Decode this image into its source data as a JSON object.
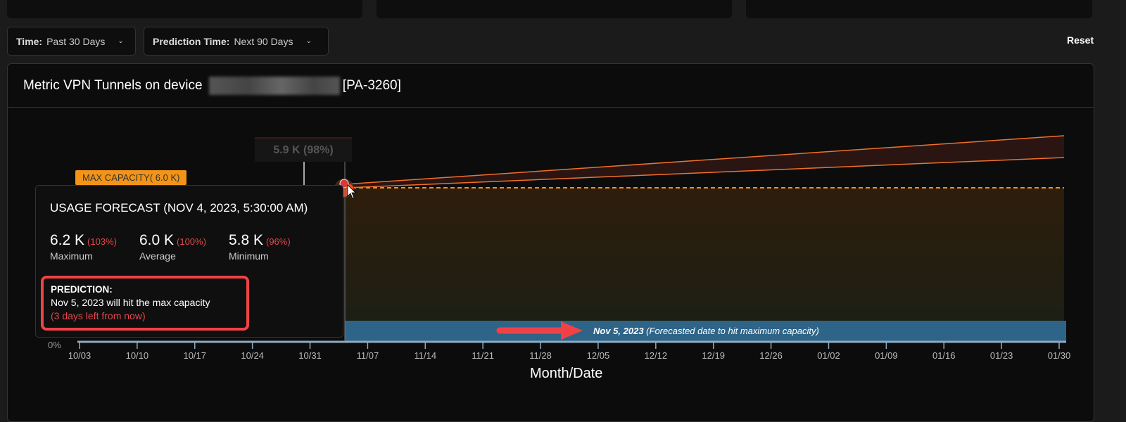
{
  "filters": {
    "time_label": "Time:",
    "time_value": "Past 30 Days",
    "prediction_label": "Prediction Time:",
    "prediction_value": "Next 90 Days",
    "reset": "Reset"
  },
  "panel": {
    "title_prefix": "Metric VPN Tunnels on device",
    "title_suffix": "[PA-3260]"
  },
  "chart": {
    "max_capacity_label": "MAX CAPACITY( 6.0 K)",
    "hover_value": "5.9 K (98%)",
    "zero_label": "0%",
    "xlabel": "Month/Date",
    "ticks": [
      "10/03",
      "10/10",
      "10/17",
      "10/24",
      "10/31",
      "11/07",
      "11/14",
      "11/21",
      "11/28",
      "12/05",
      "12/12",
      "12/19",
      "12/26",
      "01/02",
      "01/09",
      "01/16",
      "01/23",
      "01/30"
    ],
    "band_date": "Nov 5, 2023",
    "band_text": "(Forecasted date to hit maximum capacity)",
    "colors": {
      "forecast_line": "#f0702a",
      "max_line": "#f29418",
      "band": "#2e6488",
      "arrow": "#f04246"
    }
  },
  "tooltip": {
    "title": "USAGE FORECAST (NOV 4, 2023, 5:30:00 AM)",
    "stats": [
      {
        "value": "6.2 K",
        "pct": "(103%)",
        "label": "Maximum"
      },
      {
        "value": "6.0 K",
        "pct": "(100%)",
        "label": "Average"
      },
      {
        "value": "5.8 K",
        "pct": "(96%)",
        "label": "Minimum"
      }
    ],
    "prediction_title": "PREDICTION:",
    "prediction_text": "Nov 5, 2023 will hit the max capacity",
    "prediction_remaining": "(3 days left from now)"
  }
}
